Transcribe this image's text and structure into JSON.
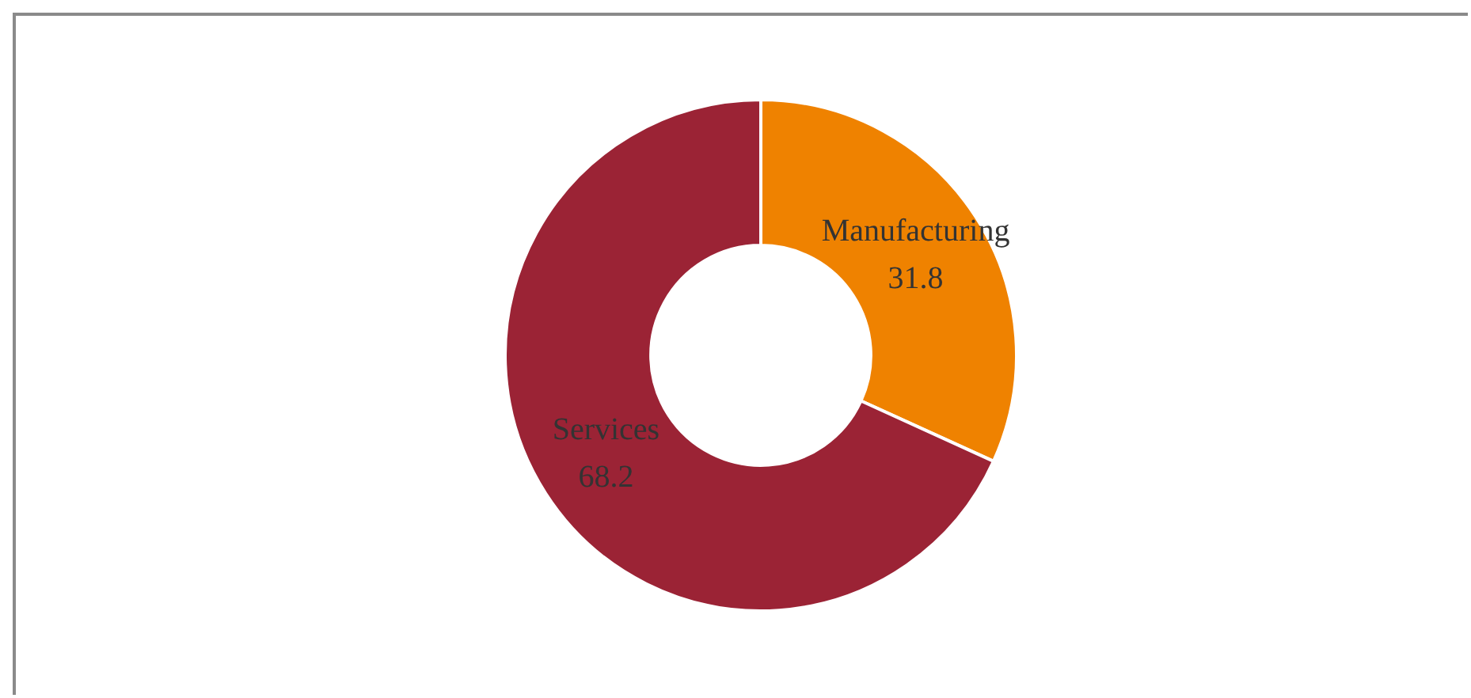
{
  "chart_data": {
    "type": "donut",
    "categories": [
      "Manufacturing",
      "Services"
    ],
    "values": [
      31.8,
      68.2
    ],
    "colors": [
      "#ef8200",
      "#9b2335"
    ],
    "data_labels": true,
    "legend": false
  }
}
